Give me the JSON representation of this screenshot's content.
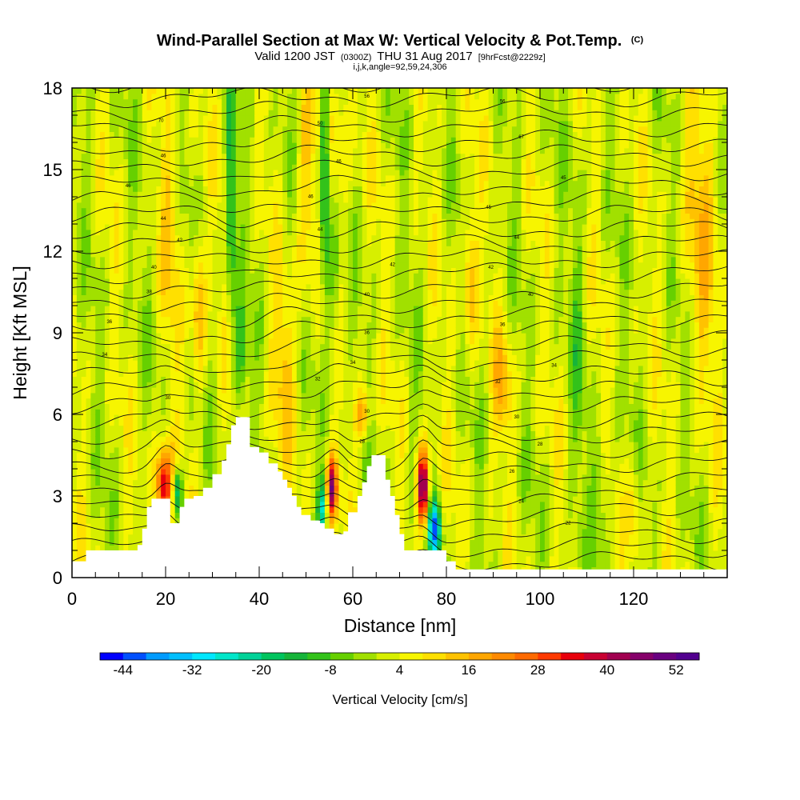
{
  "header": {
    "title": "Wind-Parallel Section at Max W: Vertical Velocity & Pot.Temp.",
    "copyright": "(C)",
    "valid_prefix": "Valid 1200 JST",
    "valid_utc": "(0300Z)",
    "valid_date": "THU 31 Aug 2017",
    "forecast_info": "[9hrFcst@2229z]",
    "params": "i,j,k,angle=92,59,24,306"
  },
  "chart_data": {
    "type": "heatmap",
    "xlabel": "Distance [nm]",
    "ylabel": "Height [Kft MSL]",
    "xlim": [
      0,
      140
    ],
    "ylim": [
      0,
      18
    ],
    "x_ticks": [
      0,
      20,
      40,
      60,
      80,
      100,
      120
    ],
    "y_ticks": [
      0,
      3,
      6,
      9,
      12,
      15,
      18
    ],
    "terrain": [
      [
        0,
        0.6
      ],
      [
        3,
        0.6
      ],
      [
        3,
        1.0
      ],
      [
        13,
        1.0
      ],
      [
        14,
        1.2
      ],
      [
        15,
        1.8
      ],
      [
        16,
        2.6
      ],
      [
        17,
        2.9
      ],
      [
        20,
        2.9
      ],
      [
        21,
        2.0
      ],
      [
        22,
        2.0
      ],
      [
        23,
        2.6
      ],
      [
        24,
        2.9
      ],
      [
        26,
        3.0
      ],
      [
        28,
        3.3
      ],
      [
        30,
        3.8
      ],
      [
        32,
        4.3
      ],
      [
        33,
        4.9
      ],
      [
        34,
        5.6
      ],
      [
        35,
        5.9
      ],
      [
        37,
        5.9
      ],
      [
        38,
        4.8
      ],
      [
        40,
        4.6
      ],
      [
        42,
        4.2
      ],
      [
        44,
        3.9
      ],
      [
        45,
        3.6
      ],
      [
        46,
        3.3
      ],
      [
        47,
        3.0
      ],
      [
        48,
        2.6
      ],
      [
        49,
        2.3
      ],
      [
        51,
        2.1
      ],
      [
        53,
        2.0
      ],
      [
        54,
        1.8
      ],
      [
        56,
        1.6
      ],
      [
        58,
        1.7
      ],
      [
        59,
        2.4
      ],
      [
        61,
        3.0
      ],
      [
        62,
        3.5
      ],
      [
        63,
        4.1
      ],
      [
        64,
        4.5
      ],
      [
        66,
        4.5
      ],
      [
        67,
        3.6
      ],
      [
        68,
        3.0
      ],
      [
        69,
        2.3
      ],
      [
        70,
        1.6
      ],
      [
        71,
        1.0
      ],
      [
        80,
        0.6
      ],
      [
        82,
        0.3
      ],
      [
        140,
        0.3
      ]
    ],
    "colorbar": {
      "title": "Vertical Velocity [cm/s]",
      "tick_labels": [
        -44,
        -32,
        -20,
        -8,
        4,
        16,
        28,
        40,
        52
      ],
      "min": -48,
      "max": 56,
      "step": 4,
      "colors": [
        "#0000ff",
        "#0050ff",
        "#009bff",
        "#00bfff",
        "#00e7ff",
        "#00e6c9",
        "#00d298",
        "#00c45e",
        "#16b43a",
        "#33c21a",
        "#66d000",
        "#a1e000",
        "#d7ef00",
        "#f7f500",
        "#ffe000",
        "#ffc200",
        "#ffa600",
        "#ff8a00",
        "#ff6a00",
        "#ff3a00",
        "#e8000c",
        "#c80032",
        "#a10050",
        "#86006a",
        "#6a0080",
        "#52008f"
      ]
    },
    "updraft_cores": [
      {
        "x": 19.5,
        "z": 3.2,
        "w": 48
      },
      {
        "x": 27,
        "z": 10,
        "w": 28
      },
      {
        "x": 55.5,
        "z": 3.3,
        "w": 44
      },
      {
        "x": 62,
        "z": 6,
        "w": 22
      },
      {
        "x": 75,
        "z": 3.3,
        "w": 56
      }
    ],
    "downdraft_cores": [
      {
        "x": 22.5,
        "z": 3.2,
        "w": -34
      },
      {
        "x": 34,
        "z": 14,
        "w": -28
      },
      {
        "x": 54,
        "z": 15,
        "w": -30
      },
      {
        "x": 77.5,
        "z": 1.8,
        "w": -44
      }
    ],
    "theta_labels": [
      {
        "x": 63,
        "z": 17.7,
        "value": "56"
      },
      {
        "x": 92,
        "z": 17.5,
        "value": "56"
      },
      {
        "x": 19,
        "z": 16.8,
        "value": "70"
      },
      {
        "x": 53,
        "z": 16.7,
        "value": "50"
      },
      {
        "x": 96,
        "z": 16.2,
        "value": "67"
      },
      {
        "x": 19.5,
        "z": 15.5,
        "value": "46"
      },
      {
        "x": 57,
        "z": 15.3,
        "value": "46"
      },
      {
        "x": 12,
        "z": 14.4,
        "value": "46"
      },
      {
        "x": 51,
        "z": 14.0,
        "value": "46"
      },
      {
        "x": 105,
        "z": 14.7,
        "value": "45"
      },
      {
        "x": 89,
        "z": 13.6,
        "value": "45"
      },
      {
        "x": 19.5,
        "z": 13.2,
        "value": "44"
      },
      {
        "x": 53,
        "z": 12.8,
        "value": "44"
      },
      {
        "x": 95,
        "z": 12.5,
        "value": "44"
      },
      {
        "x": 23,
        "z": 12.4,
        "value": "42"
      },
      {
        "x": 68.5,
        "z": 11.5,
        "value": "42"
      },
      {
        "x": 89.5,
        "z": 11.4,
        "value": "42"
      },
      {
        "x": 17.5,
        "z": 11.4,
        "value": "40"
      },
      {
        "x": 63,
        "z": 10.4,
        "value": "40"
      },
      {
        "x": 98,
        "z": 10.4,
        "value": "40"
      },
      {
        "x": 16.5,
        "z": 10.5,
        "value": "38"
      },
      {
        "x": 8,
        "z": 9.4,
        "value": "36"
      },
      {
        "x": 63,
        "z": 9.0,
        "value": "36"
      },
      {
        "x": 92,
        "z": 9.3,
        "value": "36"
      },
      {
        "x": 7,
        "z": 8.2,
        "value": "34"
      },
      {
        "x": 60,
        "z": 7.9,
        "value": "34"
      },
      {
        "x": 103,
        "z": 7.8,
        "value": "34"
      },
      {
        "x": 52.5,
        "z": 7.3,
        "value": "32"
      },
      {
        "x": 91,
        "z": 7.2,
        "value": "32"
      },
      {
        "x": 20.5,
        "z": 6.6,
        "value": "30"
      },
      {
        "x": 63,
        "z": 6.1,
        "value": "30"
      },
      {
        "x": 95,
        "z": 5.9,
        "value": "30"
      },
      {
        "x": 62,
        "z": 5.0,
        "value": "28"
      },
      {
        "x": 100,
        "z": 4.9,
        "value": "28"
      },
      {
        "x": 94,
        "z": 3.9,
        "value": "26"
      },
      {
        "x": 96,
        "z": 2.8,
        "value": "24"
      },
      {
        "x": 106,
        "z": 2.0,
        "value": "22"
      }
    ]
  }
}
